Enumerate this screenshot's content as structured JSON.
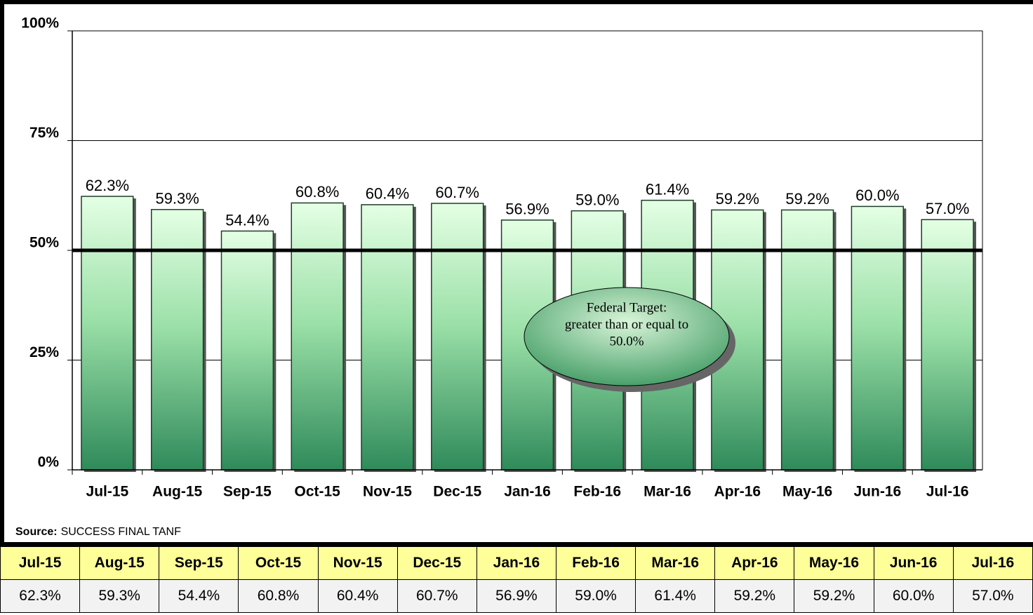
{
  "chart_data": {
    "type": "bar",
    "categories": [
      "Jul-15",
      "Aug-15",
      "Sep-15",
      "Oct-15",
      "Nov-15",
      "Dec-15",
      "Jan-16",
      "Feb-16",
      "Mar-16",
      "Apr-16",
      "May-16",
      "Jun-16",
      "Jul-16"
    ],
    "values": [
      62.3,
      59.3,
      54.4,
      60.8,
      60.4,
      60.7,
      56.9,
      59.0,
      61.4,
      59.2,
      59.2,
      60.0,
      57.0
    ],
    "value_labels": [
      "62.3%",
      "59.3%",
      "54.4%",
      "60.8%",
      "60.4%",
      "60.7%",
      "56.9%",
      "59.0%",
      "61.4%",
      "59.2%",
      "59.2%",
      "60.0%",
      "57.0%"
    ],
    "color": "#3a9e6a",
    "ylim": [
      0,
      100
    ],
    "yticks": [
      {
        "value": 0,
        "label": "0%"
      },
      {
        "value": 25,
        "label": "25%"
      },
      {
        "value": 50,
        "label": "50%"
      },
      {
        "value": 75,
        "label": "75%"
      },
      {
        "value": 100,
        "label": "100%"
      }
    ],
    "grid": true,
    "target": 50,
    "annotation": [
      "Federal Target:",
      "greater than or equal to",
      "50.0%"
    ],
    "source_label": "Source:",
    "source": "SUCCESS FINAL TANF"
  },
  "table": {
    "header": [
      "Jul-15",
      "Aug-15",
      "Sep-15",
      "Oct-15",
      "Nov-15",
      "Dec-15",
      "Jan-16",
      "Feb-16",
      "Mar-16",
      "Apr-16",
      "May-16",
      "Jun-16",
      "Jul-16"
    ],
    "rows": [
      [
        "62.3%",
        "59.3%",
        "54.4%",
        "60.8%",
        "60.4%",
        "60.7%",
        "56.9%",
        "59.0%",
        "61.4%",
        "59.2%",
        "59.2%",
        "60.0%",
        "57.0%"
      ]
    ]
  }
}
